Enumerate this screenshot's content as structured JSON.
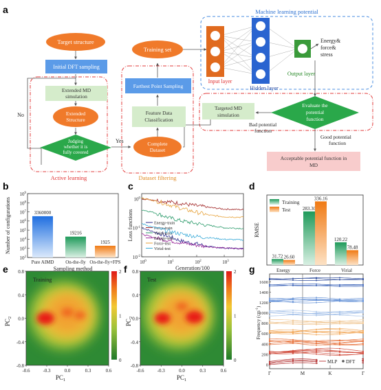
{
  "panels": {
    "a": {
      "letter": "a",
      "ml_title": "Machine learning potential",
      "target": "Target structure",
      "initial": "Initial DFT sampling",
      "ext_md_l1": "Extended MD",
      "ext_md_l2": "simulation",
      "ext_struct_l1": "Extended",
      "ext_struct_l2": "Structure",
      "judge_l1": "Judging",
      "judge_l2": "whether it is",
      "judge_l3": "fully covered",
      "no": "No",
      "yes": "Yes",
      "active_learning": "Active learning",
      "training_set": "Training set",
      "fps": "Farthest Point Sampling",
      "fdc_l1": "Feature Data",
      "fdc_l2": "Classification",
      "complete_l1": "Complete",
      "complete_l2": "Dataset",
      "dataset_filtering": "Dataset filtering",
      "input_layer": "Input layer",
      "hidden_layer": "Hidden layer",
      "output_layer": "Output layer",
      "efs_l1": "Energy&",
      "efs_l2": "force&",
      "efs_l3": "stress",
      "targeted_l1": "Targeted MD",
      "targeted_l2": "simulation",
      "evaluate_l1": "Evaluate the",
      "evaluate_l2": "potential",
      "evaluate_l3": "function",
      "bad_l1": "Bad potential",
      "bad_l2": "function",
      "good_l1": "Good potential",
      "good_l2": "function",
      "acceptable_l1": "Acceptable potential function in",
      "acceptable_l2": "MD"
    },
    "b": {
      "letter": "b"
    },
    "c": {
      "letter": "c"
    },
    "d": {
      "letter": "d"
    },
    "e": {
      "letter": "e",
      "label": "Training",
      "xlabel_main": "PC",
      "xlabel_sub": "1",
      "ylabel_main": "PC",
      "ylabel_sub": "2"
    },
    "f": {
      "letter": "f",
      "label": "Test",
      "xlabel_main": "PC",
      "xlabel_sub": "1",
      "ylabel_main": "PC",
      "ylabel_sub": "2"
    },
    "g": {
      "letter": "g"
    }
  },
  "chart_data": [
    {
      "panel": "b",
      "type": "bar",
      "title": "",
      "xlabel": "Sampling method",
      "ylabel": "Number of configurations",
      "yscale": "log",
      "ylim": [
        100,
        1000000000
      ],
      "yticks": [
        {
          "exp": 2,
          "label": "10",
          "sup": "2"
        },
        {
          "exp": 3,
          "label": "10",
          "sup": "3"
        },
        {
          "exp": 4,
          "label": "10",
          "sup": "4"
        },
        {
          "exp": 5,
          "label": "10",
          "sup": "5"
        },
        {
          "exp": 6,
          "label": "10",
          "sup": "6"
        },
        {
          "exp": 7,
          "label": "10",
          "sup": "7"
        },
        {
          "exp": 8,
          "label": "10",
          "sup": "8"
        },
        {
          "exp": 9,
          "label": "10",
          "sup": "9"
        }
      ],
      "categories": [
        "Pure AIMD",
        "On-the-fly",
        "On-the-fly+FPS"
      ],
      "values": [
        3360000,
        19216,
        1925
      ],
      "value_labels": [
        "3360000",
        "19216",
        "1925"
      ],
      "colors": [
        "#2f7fe0",
        "#2aa86a",
        "#f08a24"
      ]
    },
    {
      "panel": "c",
      "type": "line",
      "title": "",
      "xlabel": "Generation/100",
      "ylabel": "Loss functions",
      "xscale": "log",
      "yscale": "log",
      "xlim": [
        1,
        5000
      ],
      "ylim": [
        0.01,
        1.5
      ],
      "xticks": [
        {
          "v": 1,
          "label": "10",
          "sup": "0"
        },
        {
          "v": 10,
          "label": "10",
          "sup": "1"
        },
        {
          "v": 100,
          "label": "10",
          "sup": "2"
        },
        {
          "v": 1000,
          "label": "10",
          "sup": "3"
        }
      ],
      "yticks": [
        {
          "v": 0.01,
          "label": "10",
          "sup": "-2"
        },
        {
          "v": 0.1,
          "label": "10",
          "sup": "-1"
        },
        {
          "v": 1,
          "label": "10",
          "sup": "0"
        }
      ],
      "series": [
        {
          "name": "Energy-train",
          "color": "#2c2c8f",
          "x": [
            1,
            3,
            10,
            30,
            100,
            300,
            1000,
            5000
          ],
          "y": [
            0.1,
            0.07,
            0.05,
            0.034,
            0.028,
            0.022,
            0.02,
            0.019
          ]
        },
        {
          "name": "Force-train",
          "color": "#a02424",
          "x": [
            1,
            3,
            10,
            30,
            100,
            300,
            1000,
            5000
          ],
          "y": [
            1.0,
            0.9,
            0.78,
            0.68,
            0.57,
            0.5,
            0.44,
            0.42
          ]
        },
        {
          "name": "Virial-train",
          "color": "#2a9a6a",
          "x": [
            1,
            3,
            10,
            30,
            100,
            300,
            1000,
            5000
          ],
          "y": [
            0.42,
            0.33,
            0.22,
            0.17,
            0.14,
            0.12,
            0.1,
            0.095
          ]
        },
        {
          "name": "Energy-test",
          "color": "#9a2a9a",
          "x": [
            1,
            3,
            10,
            30,
            100,
            300,
            1000,
            5000
          ],
          "y": [
            0.06,
            0.045,
            0.036,
            0.03,
            0.025,
            0.022,
            0.02,
            0.019
          ]
        },
        {
          "name": "Force-test",
          "color": "#e7a23a",
          "x": [
            1,
            3,
            10,
            30,
            100,
            300,
            1000,
            5000
          ],
          "y": [
            1.05,
            0.85,
            0.62,
            0.45,
            0.34,
            0.27,
            0.24,
            0.23
          ]
        },
        {
          "name": "Virial-test",
          "color": "#3aaad8",
          "x": [
            1,
            3,
            10,
            30,
            100,
            300,
            1000,
            5000
          ],
          "y": [
            0.14,
            0.1,
            0.075,
            0.06,
            0.05,
            0.045,
            0.04,
            0.038
          ]
        }
      ]
    },
    {
      "panel": "d",
      "type": "bar",
      "title": "",
      "xlabel": "",
      "ylabel": "RMSE",
      "ylim": [
        0,
        370
      ],
      "categories": [
        "Energy",
        "Force",
        "Virial"
      ],
      "series": [
        {
          "name": "Training",
          "values": [
            31.72,
            283.3,
            120.22
          ],
          "labels": [
            "31.72",
            "283.30",
            "120.22"
          ],
          "color": "#2aa86a"
        },
        {
          "name": "Test",
          "values": [
            26.6,
            336.16,
            78.48
          ],
          "labels": [
            "26.60",
            "336.16",
            "78.48"
          ],
          "color": "#f08a24"
        }
      ],
      "legend": "top-left"
    },
    {
      "panel": "e",
      "type": "heatmap",
      "title": "",
      "xlim": [
        -0.6,
        0.6
      ],
      "ylim": [
        -0.8,
        0.8
      ],
      "xticks": [
        "-0.6",
        "-0.3",
        "0.0",
        "0.3",
        "0.6"
      ],
      "yticks": [
        "0.8",
        "0.4",
        "0.0",
        "-0.4",
        "-0.8"
      ],
      "colorbar_range": [
        0,
        2
      ],
      "colorbar_ticks": [
        "2",
        "1",
        "0"
      ],
      "density_peaks": [
        {
          "x": -0.32,
          "y": 0.0,
          "level": 2.0
        },
        {
          "x": 0.0,
          "y": 0.1,
          "level": 1.4
        },
        {
          "x": 0.18,
          "y": 0.05,
          "level": 1.3
        }
      ]
    },
    {
      "panel": "f",
      "type": "heatmap",
      "title": "",
      "xlim": [
        -0.6,
        0.6
      ],
      "ylim": [
        -0.8,
        0.8
      ],
      "xticks": [
        "-0.6",
        "-0.3",
        "0.0",
        "0.3",
        "0.6"
      ],
      "yticks": [
        "0.8",
        "0.4",
        "0.0",
        "-0.4",
        "-0.8"
      ],
      "colorbar_range": [
        0,
        2
      ],
      "colorbar_ticks": [
        "2",
        "1",
        "0"
      ],
      "density_peaks": [
        {
          "x": -0.28,
          "y": 0.0,
          "level": 1.8
        },
        {
          "x": 0.18,
          "y": 0.02,
          "level": 2.0
        },
        {
          "x": 0.0,
          "y": 0.2,
          "level": 1.3
        }
      ]
    },
    {
      "panel": "g",
      "type": "line",
      "title": "",
      "xlabel": "",
      "ylabel": "Frequency (cm",
      "ylabel_sup": "-1",
      "ylabel_end": ")",
      "ylim": [
        -80,
        1750
      ],
      "yticks": [
        "0",
        "200",
        "400",
        "600",
        "800",
        "1000",
        "1200",
        "1400",
        "1600"
      ],
      "xticks": [
        "Γ",
        "M",
        "K",
        "Γ"
      ],
      "legend": [
        {
          "name": "MLP"
        },
        {
          "name": "DFT"
        }
      ],
      "band_groups": [
        {
          "base": 1660,
          "n": 3,
          "spread": 25,
          "color": "#2c4a9a"
        },
        {
          "base": 1540,
          "n": 3,
          "spread": 20,
          "color": "#3a62b8"
        },
        {
          "base": 1250,
          "n": 6,
          "spread": 35,
          "color": "#6a95d8"
        },
        {
          "base": 1000,
          "n": 6,
          "spread": 40,
          "color": "#a9c4ea"
        },
        {
          "base": 820,
          "n": 5,
          "spread": 35,
          "color": "#f0c896"
        },
        {
          "base": 640,
          "n": 6,
          "spread": 40,
          "color": "#f2a85a"
        },
        {
          "base": 440,
          "n": 6,
          "spread": 45,
          "color": "#e7713a"
        },
        {
          "base": 250,
          "n": 6,
          "spread": 45,
          "color": "#d04a3a"
        },
        {
          "base": 60,
          "n": 4,
          "spread": 40,
          "color": "#b02a2a"
        }
      ]
    }
  ]
}
